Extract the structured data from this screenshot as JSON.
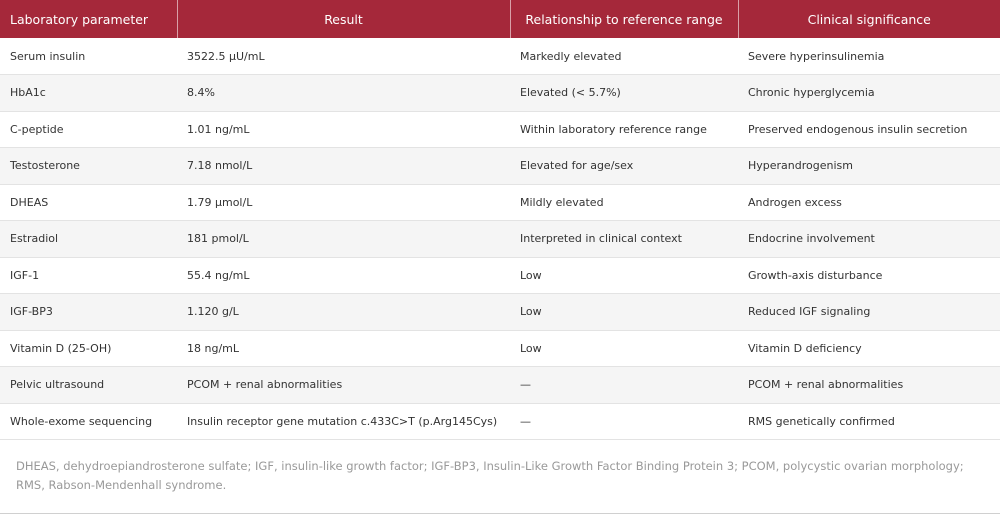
{
  "table": {
    "headers": [
      "Laboratory parameter",
      "Result",
      "Relationship to reference range",
      "Clinical significance"
    ],
    "rows": [
      [
        "Serum insulin",
        "3522.5 µU/mL",
        "Markedly elevated",
        "Severe hyperinsulinemia"
      ],
      [
        "HbA1c",
        "8.4%",
        "Elevated (< 5.7%)",
        "Chronic hyperglycemia"
      ],
      [
        "C-peptide",
        "1.01 ng/mL",
        "Within laboratory reference range",
        "Preserved endogenous insulin secretion"
      ],
      [
        "Testosterone",
        "7.18 nmol/L",
        "Elevated for age/sex",
        "Hyperandrogenism"
      ],
      [
        "DHEAS",
        "1.79 µmol/L",
        "Mildly elevated",
        "Androgen excess"
      ],
      [
        "Estradiol",
        "181 pmol/L",
        "Interpreted in clinical context",
        "Endocrine involvement"
      ],
      [
        "IGF-1",
        "55.4 ng/mL",
        "Low",
        "Growth-axis disturbance"
      ],
      [
        "IGF-BP3",
        "1.120 g/L",
        "Low",
        "Reduced IGF signaling"
      ],
      [
        "Vitamin D (25-OH)",
        "18 ng/mL",
        "Low",
        "Vitamin D deficiency"
      ],
      [
        "Pelvic ultrasound",
        "PCOM + renal abnormalities",
        "—",
        "PCOM + renal abnormalities"
      ],
      [
        "Whole-exome sequencing",
        "Insulin receptor gene mutation c.433C>T (p.Arg145Cys)",
        "—",
        "RMS genetically confirmed"
      ]
    ]
  },
  "footnote": "DHEAS, dehydroepiandrosterone sulfate; IGF, insulin-like growth factor; IGF-BP3, Insulin-Like Growth Factor Binding Protein 3; PCOM, polycystic ovarian morphology; RMS, Rabson-Mendenhall syndrome.",
  "colors": {
    "header_bg": "#a5283a",
    "header_text": "#ffffff",
    "row_alt_bg": "#f5f5f5",
    "footnote_text": "#999999"
  }
}
